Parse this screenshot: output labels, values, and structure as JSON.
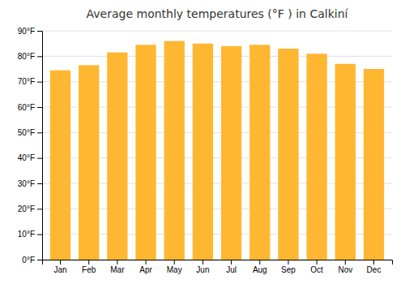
{
  "chart_data": {
    "type": "bar",
    "title": "Average monthly temperatures (°F ) in Calkiní",
    "categories": [
      "Jan",
      "Feb",
      "Mar",
      "Apr",
      "May",
      "Jun",
      "Jul",
      "Aug",
      "Sep",
      "Oct",
      "Nov",
      "Dec"
    ],
    "values": [
      74.5,
      76.5,
      81.5,
      84.5,
      86.0,
      85.0,
      84.0,
      84.5,
      83.0,
      81.0,
      77.0,
      75.0
    ],
    "color": "#FFB732",
    "ylim": [
      0,
      90
    ],
    "yticks": [
      {
        "value": 0,
        "label": "0°F"
      },
      {
        "value": 10,
        "label": "10°F"
      },
      {
        "value": 20,
        "label": "20°F"
      },
      {
        "value": 30,
        "label": "30°F"
      },
      {
        "value": 40,
        "label": "40°F"
      },
      {
        "value": 50,
        "label": "50°F"
      },
      {
        "value": 60,
        "label": "60°F"
      },
      {
        "value": 70,
        "label": "70°F"
      },
      {
        "value": 80,
        "label": "80°F"
      },
      {
        "value": 90,
        "label": "90°F"
      }
    ],
    "grid": true
  }
}
